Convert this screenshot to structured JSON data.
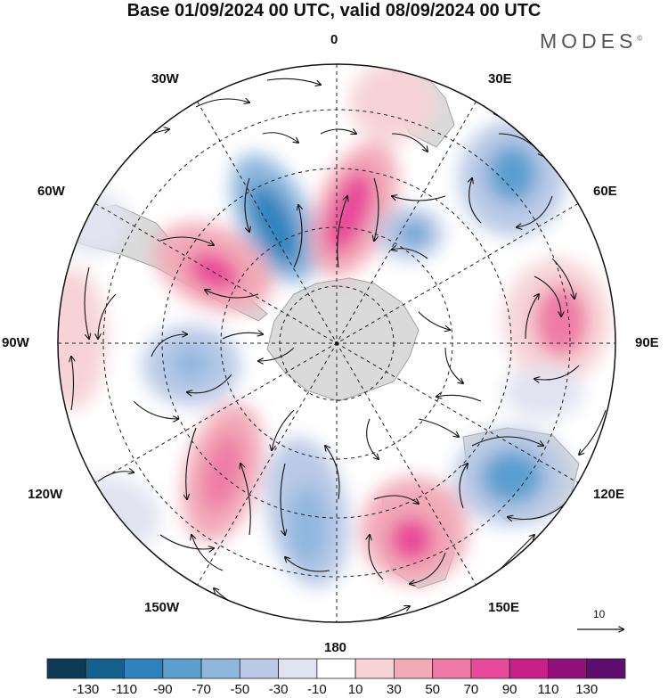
{
  "title": "Base 01/09/2024 00 UTC, valid 08/09/2024 00 UTC",
  "brand": "MODES",
  "brand_mark": "©",
  "longitude_labels": [
    "0",
    "30E",
    "60E",
    "90E",
    "120E",
    "150E",
    "180",
    "150W",
    "120W",
    "90W",
    "60W",
    "30W"
  ],
  "reference_vector": {
    "label": "10"
  },
  "colorbar": {
    "ticks": [
      "-130",
      "-110",
      "-90",
      "-70",
      "-50",
      "-30",
      "-10",
      "10",
      "30",
      "50",
      "70",
      "90",
      "110",
      "130"
    ],
    "colors": [
      "#0d3b55",
      "#14618f",
      "#2f83bd",
      "#5a9fd0",
      "#8fb7de",
      "#b9c9e6",
      "#e1e3f1",
      "#ffffff",
      "#f7d3d6",
      "#f2aab7",
      "#ef7aa5",
      "#e8499a",
      "#c81f88",
      "#93107a",
      "#5d0e6e"
    ]
  },
  "colors": {
    "land": "#bdbdbd",
    "coast": "#555555",
    "grid": "#222222"
  }
}
